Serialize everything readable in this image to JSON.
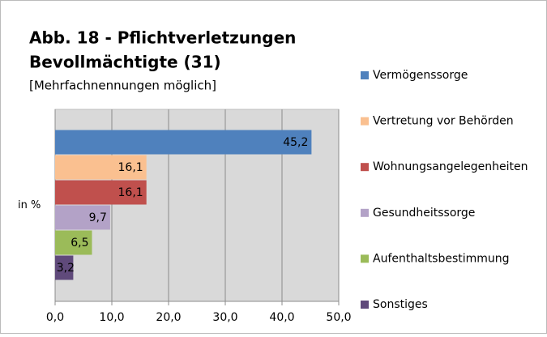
{
  "chart_data": {
    "type": "bar",
    "orientation": "horizontal",
    "title": [
      "Abb. 18 - Pflichtverletzungen",
      "Bevollmächtigte (31)"
    ],
    "subtitle": "[Mehrfachnennungen möglich]",
    "categories": [
      "in %"
    ],
    "series": [
      {
        "name": "Vermögenssorge",
        "color": "#4f81bd",
        "values": [
          45.2
        ],
        "value_labels": [
          "45,2"
        ]
      },
      {
        "name": "Vertretung vor Behörden",
        "color": "#fac090",
        "values": [
          16.1
        ],
        "value_labels": [
          "16,1"
        ]
      },
      {
        "name": "Wohnungsangelegenheiten",
        "color": "#c0504d",
        "values": [
          16.1
        ],
        "value_labels": [
          "16,1"
        ]
      },
      {
        "name": "Gesundheitssorge",
        "color": "#b3a2c7",
        "values": [
          9.7
        ],
        "value_labels": [
          "9,7"
        ]
      },
      {
        "name": "Aufenthaltsbestimmung",
        "color": "#9bbb59",
        "values": [
          6.5
        ],
        "value_labels": [
          "6,5"
        ]
      },
      {
        "name": "Sonstiges",
        "color": "#604a7b",
        "values": [
          3.2
        ],
        "value_labels": [
          "3,2"
        ]
      }
    ],
    "xlim": [
      0,
      50
    ],
    "xticks": [
      {
        "value": 0,
        "label": "0,0"
      },
      {
        "value": 10,
        "label": "10,0"
      },
      {
        "value": 20,
        "label": "20,0"
      },
      {
        "value": 30,
        "label": "30,0"
      },
      {
        "value": 40,
        "label": "40,0"
      },
      {
        "value": 50,
        "label": "50,0"
      }
    ],
    "grid": true,
    "legend": "right"
  }
}
